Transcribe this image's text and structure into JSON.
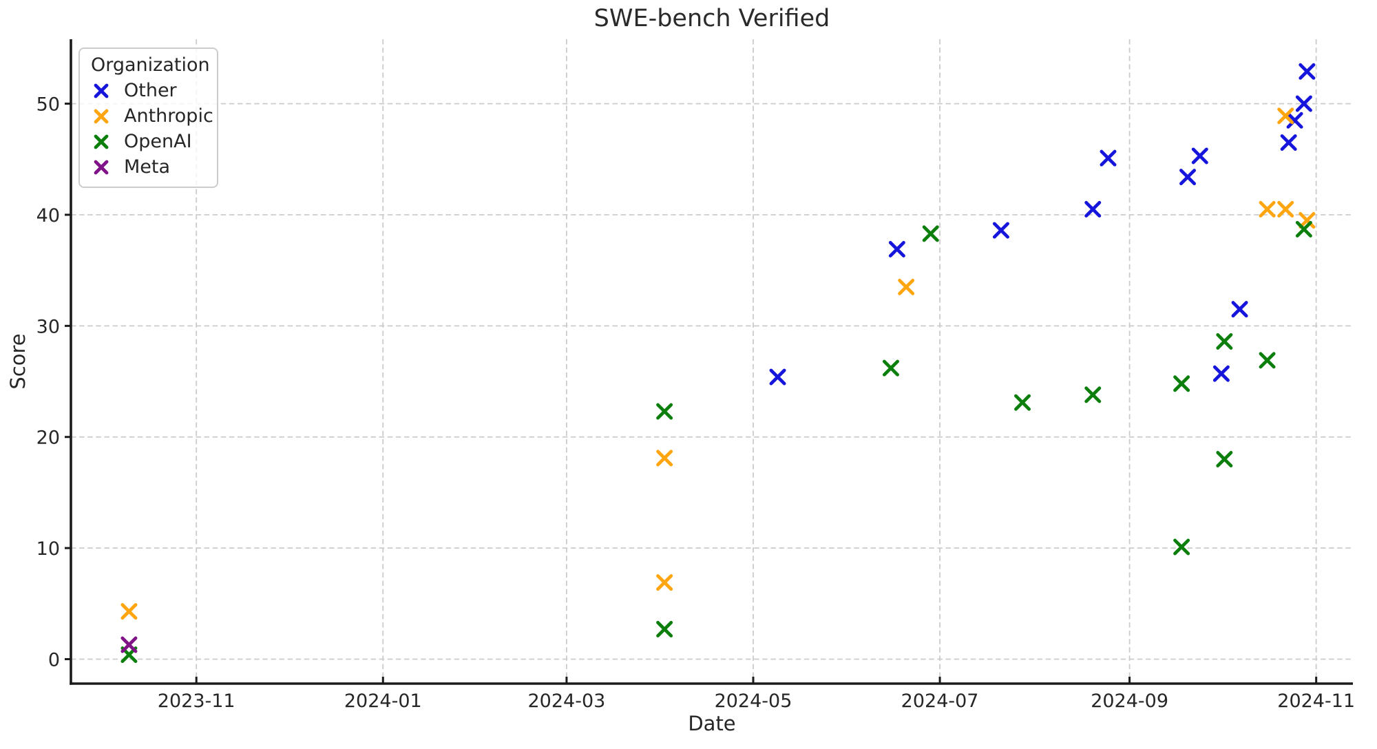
{
  "chart_data": {
    "type": "scatter",
    "title": "SWE-bench Verified",
    "xlabel": "Date",
    "ylabel": "Score",
    "legend_title": "Organization",
    "legend_position": "upper left",
    "grid": true,
    "grid_style": "dashed",
    "marker": "x",
    "xlim": [
      "2023-09-21",
      "2024-11-13"
    ],
    "ylim": [
      -2.2,
      55.8
    ],
    "x_ticks": [
      {
        "label": "2023-11",
        "date": "2023-11-01"
      },
      {
        "label": "2024-01",
        "date": "2024-01-01"
      },
      {
        "label": "2024-03",
        "date": "2024-03-01"
      },
      {
        "label": "2024-05",
        "date": "2024-05-01"
      },
      {
        "label": "2024-07",
        "date": "2024-07-01"
      },
      {
        "label": "2024-09",
        "date": "2024-09-01"
      },
      {
        "label": "2024-11",
        "date": "2024-11-01"
      }
    ],
    "y_ticks": [
      0,
      10,
      20,
      30,
      40,
      50
    ],
    "series": [
      {
        "name": "Other",
        "color": "#1515dc",
        "points": [
          {
            "date": "2024-05-09",
            "score": 25.4
          },
          {
            "date": "2024-06-17",
            "score": 36.9
          },
          {
            "date": "2024-07-21",
            "score": 38.6
          },
          {
            "date": "2024-08-20",
            "score": 40.5
          },
          {
            "date": "2024-08-25",
            "score": 45.1
          },
          {
            "date": "2024-09-20",
            "score": 43.4
          },
          {
            "date": "2024-09-24",
            "score": 45.3
          },
          {
            "date": "2024-10-01",
            "score": 25.7
          },
          {
            "date": "2024-10-07",
            "score": 31.5
          },
          {
            "date": "2024-10-23",
            "score": 46.5
          },
          {
            "date": "2024-10-25",
            "score": 48.5
          },
          {
            "date": "2024-10-28",
            "score": 50.0
          },
          {
            "date": "2024-10-29",
            "score": 52.9
          }
        ]
      },
      {
        "name": "Anthropic",
        "color": "#ffa50f",
        "points": [
          {
            "date": "2023-10-10",
            "score": 4.3
          },
          {
            "date": "2024-04-02",
            "score": 18.1
          },
          {
            "date": "2024-04-02",
            "score": 6.9
          },
          {
            "date": "2024-06-20",
            "score": 33.5
          },
          {
            "date": "2024-10-16",
            "score": 40.5
          },
          {
            "date": "2024-10-22",
            "score": 40.5
          },
          {
            "date": "2024-10-22",
            "score": 48.9
          },
          {
            "date": "2024-10-29",
            "score": 39.5
          }
        ]
      },
      {
        "name": "OpenAI",
        "color": "#0b7e0b",
        "points": [
          {
            "date": "2023-10-10",
            "score": 0.4
          },
          {
            "date": "2024-04-02",
            "score": 22.3
          },
          {
            "date": "2024-04-02",
            "score": 2.7
          },
          {
            "date": "2024-06-15",
            "score": 26.2
          },
          {
            "date": "2024-06-28",
            "score": 38.3
          },
          {
            "date": "2024-07-28",
            "score": 23.1
          },
          {
            "date": "2024-08-20",
            "score": 23.8
          },
          {
            "date": "2024-09-18",
            "score": 24.8
          },
          {
            "date": "2024-09-18",
            "score": 10.1
          },
          {
            "date": "2024-10-02",
            "score": 28.6
          },
          {
            "date": "2024-10-02",
            "score": 18.0
          },
          {
            "date": "2024-10-16",
            "score": 26.9
          },
          {
            "date": "2024-10-28",
            "score": 38.7
          }
        ]
      },
      {
        "name": "Meta",
        "color": "#7f1387",
        "points": [
          {
            "date": "2023-10-10",
            "score": 1.3
          }
        ]
      }
    ],
    "style": {
      "grid_color": "#cbcbcb",
      "spine_color": "#1b1b1b",
      "text_color": "#262626"
    }
  }
}
